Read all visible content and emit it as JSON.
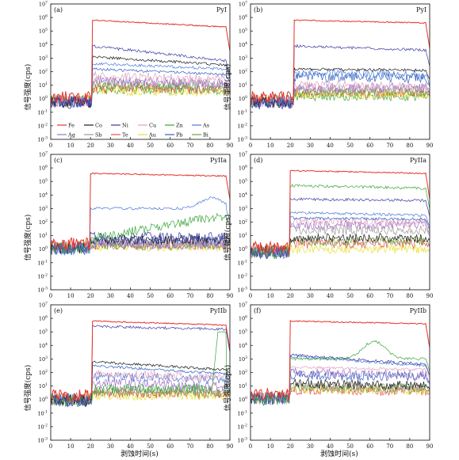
{
  "figure": {
    "y_axis_label": "信号强度(cps)",
    "x_axis_label": "剥蚀时间(s)",
    "x_ticks": [
      0,
      10,
      20,
      30,
      40,
      50,
      60,
      70,
      80,
      90
    ],
    "y_tick_exponents": [
      7,
      6,
      5,
      4,
      3,
      2,
      1,
      0,
      -1,
      -2,
      -3
    ],
    "y_tick_base": "10"
  },
  "legend": [
    {
      "label": "Fe",
      "color": "#e8322b"
    },
    {
      "label": "Co",
      "color": "#1a1a1a"
    },
    {
      "label": "Ni",
      "color": "#3a3aa6"
    },
    {
      "label": "Cu",
      "color": "#e0a0c0"
    },
    {
      "label": "Zn",
      "color": "#3aa63a"
    },
    {
      "label": "As",
      "color": "#4a7ad8"
    },
    {
      "label": "Ag",
      "color": "#a070c8"
    },
    {
      "label": "Sb",
      "color": "#9a9a9a"
    },
    {
      "label": "Te",
      "color": "#e85050"
    },
    {
      "label": "Au",
      "color": "#e8e030"
    },
    {
      "label": "Pb",
      "color": "#3060c0"
    },
    {
      "label": "Bi",
      "color": "#70a040"
    }
  ],
  "chart_data": [
    {
      "type": "line",
      "panel": "(a)",
      "mineral": "PyI",
      "xlim": [
        0,
        90
      ],
      "ylim_log10": [
        -3,
        7
      ],
      "ablation_window_s": [
        21,
        88
      ],
      "background_log10": 0,
      "series": [
        {
          "name": "Fe",
          "signal_log10": 5.8,
          "end_log10": 5.3
        },
        {
          "name": "Ni",
          "signal_log10": 3.9,
          "end_log10": 2.8
        },
        {
          "name": "Co",
          "signal_log10": 3.1,
          "end_log10": 2.5
        },
        {
          "name": "As",
          "signal_log10": 2.6,
          "end_log10": 2.2
        },
        {
          "name": "Pb",
          "signal_log10": 2.2,
          "end_log10": 1.8
        },
        {
          "name": "Cu",
          "signal_log10": 1.7,
          "end_log10": 1.4
        },
        {
          "name": "Ag",
          "signal_log10": 1.4,
          "end_log10": 1.1
        },
        {
          "name": "Sb",
          "signal_log10": 1.2,
          "end_log10": 1.0
        },
        {
          "name": "Bi",
          "signal_log10": 1.0,
          "end_log10": 0.8
        },
        {
          "name": "Te",
          "signal_log10": 0.8,
          "end_log10": 0.7
        },
        {
          "name": "Au",
          "signal_log10": 0.6,
          "end_log10": 0.5
        },
        {
          "name": "Zn",
          "signal_log10": 0.7,
          "end_log10": 0.6
        }
      ]
    },
    {
      "type": "line",
      "panel": "(b)",
      "mineral": "PyI",
      "xlim": [
        0,
        90
      ],
      "ylim_log10": [
        -3,
        7
      ],
      "ablation_window_s": [
        22,
        88
      ],
      "background_log10": 0,
      "series": [
        {
          "name": "Fe",
          "signal_log10": 5.8,
          "end_log10": 5.6
        },
        {
          "name": "Ni",
          "signal_log10": 3.9,
          "end_log10": 3.6
        },
        {
          "name": "Co",
          "signal_log10": 2.2,
          "end_log10": 2.1
        },
        {
          "name": "As",
          "signal_log10": 1.9,
          "end_log10": 1.8
        },
        {
          "name": "Pb",
          "signal_log10": 1.6,
          "end_log10": 1.5
        },
        {
          "name": "Cu",
          "signal_log10": 1.0,
          "end_log10": 0.9
        },
        {
          "name": "Ag",
          "signal_log10": 0.8,
          "end_log10": 0.8
        },
        {
          "name": "Sb",
          "signal_log10": 0.7,
          "end_log10": 0.7
        },
        {
          "name": "Bi",
          "signal_log10": 0.5,
          "end_log10": 0.5
        },
        {
          "name": "Au",
          "signal_log10": 0.3,
          "end_log10": 0.3
        },
        {
          "name": "Te",
          "signal_log10": 0.4,
          "end_log10": 0.4
        },
        {
          "name": "Zn",
          "signal_log10": 0.2,
          "end_log10": 0.2
        }
      ]
    },
    {
      "type": "line",
      "panel": "(c)",
      "mineral": "PyIIa",
      "xlim": [
        0,
        90
      ],
      "ylim_log10": [
        -3,
        7
      ],
      "ablation_window_s": [
        20,
        88
      ],
      "background_log10": 0.3,
      "series": [
        {
          "name": "Fe",
          "signal_log10": 5.6,
          "end_log10": 5.4
        },
        {
          "name": "As",
          "signal_log10": 3.0,
          "end_log10": 3.0,
          "bump_at": 81,
          "bump_log10": 3.8
        },
        {
          "name": "Zn",
          "signal_log10": 0.8,
          "end_log10": 2.5
        },
        {
          "name": "Ni",
          "signal_log10": 0.9,
          "end_log10": 0.9
        },
        {
          "name": "Co",
          "signal_log10": 0.7,
          "end_log10": 0.7
        },
        {
          "name": "Pb",
          "signal_log10": 0.6,
          "end_log10": 0.6
        },
        {
          "name": "Cu",
          "signal_log10": 0.5,
          "end_log10": 0.5
        },
        {
          "name": "Ag",
          "signal_log10": 0.4,
          "end_log10": 0.4
        },
        {
          "name": "Sb",
          "signal_log10": 0.3,
          "end_log10": 0.3
        },
        {
          "name": "Bi",
          "signal_log10": 0.3,
          "end_log10": 0.3
        },
        {
          "name": "Au",
          "signal_log10": 0.2,
          "end_log10": 0.2
        },
        {
          "name": "Te",
          "signal_log10": 0.3,
          "end_log10": 0.3
        }
      ]
    },
    {
      "type": "line",
      "panel": "(d)",
      "mineral": "PyIIa",
      "xlim": [
        0,
        90
      ],
      "ylim_log10": [
        -3,
        7
      ],
      "ablation_window_s": [
        20,
        88
      ],
      "background_log10": 0,
      "series": [
        {
          "name": "Fe",
          "signal_log10": 5.8,
          "end_log10": 5.6
        },
        {
          "name": "Zn",
          "signal_log10": 4.7,
          "end_log10": 4.5
        },
        {
          "name": "Ni",
          "signal_log10": 3.7,
          "end_log10": 3.6
        },
        {
          "name": "As",
          "signal_log10": 2.7,
          "end_log10": 2.5
        },
        {
          "name": "Pb",
          "signal_log10": 2.3,
          "end_log10": 2.2
        },
        {
          "name": "Cu",
          "signal_log10": 2.0,
          "end_log10": 2.0
        },
        {
          "name": "Ag",
          "signal_log10": 1.8,
          "end_log10": 1.8
        },
        {
          "name": "Sb",
          "signal_log10": 1.4,
          "end_log10": 1.4
        },
        {
          "name": "Co",
          "signal_log10": 0.8,
          "end_log10": 0.8
        },
        {
          "name": "Bi",
          "signal_log10": 0.6,
          "end_log10": 0.6
        },
        {
          "name": "Te",
          "signal_log10": 0.4,
          "end_log10": 0.4
        },
        {
          "name": "Au",
          "signal_log10": 0.0,
          "end_log10": 0.0
        }
      ]
    },
    {
      "type": "line",
      "panel": "(e)",
      "mineral": "PyIIb",
      "xlim": [
        0,
        90
      ],
      "ylim_log10": [
        -3,
        7
      ],
      "ablation_window_s": [
        21,
        88
      ],
      "background_log10": 0.2,
      "series": [
        {
          "name": "Fe",
          "signal_log10": 5.8,
          "end_log10": 5.5
        },
        {
          "name": "Ni",
          "signal_log10": 5.4,
          "end_log10": 5.2
        },
        {
          "name": "Zn",
          "signal_log10": 0.8,
          "end_log10": 0.8,
          "jump_at": 81,
          "jump_log10": 5.0
        },
        {
          "name": "Co",
          "signal_log10": 2.8,
          "end_log10": 2.2
        },
        {
          "name": "Pb",
          "signal_log10": 2.5,
          "end_log10": 1.9
        },
        {
          "name": "Cu",
          "signal_log10": 1.9,
          "end_log10": 1.6
        },
        {
          "name": "As",
          "signal_log10": 1.7,
          "end_log10": 1.5
        },
        {
          "name": "Ag",
          "signal_log10": 1.2,
          "end_log10": 1.0
        },
        {
          "name": "Sb",
          "signal_log10": 0.8,
          "end_log10": 0.7
        },
        {
          "name": "Bi",
          "signal_log10": 0.6,
          "end_log10": 0.5
        },
        {
          "name": "Te",
          "signal_log10": 0.5,
          "end_log10": 0.4
        },
        {
          "name": "Au",
          "signal_log10": 0.3,
          "end_log10": 0.3
        }
      ]
    },
    {
      "type": "line",
      "panel": "(f)",
      "mineral": "PyIIb",
      "xlim": [
        0,
        90
      ],
      "ylim_log10": [
        -3,
        7
      ],
      "ablation_window_s": [
        20,
        88
      ],
      "background_log10": 0.3,
      "series": [
        {
          "name": "Fe",
          "signal_log10": 5.8,
          "end_log10": 5.6
        },
        {
          "name": "Zn",
          "signal_log10": 3.0,
          "end_log10": 3.0,
          "bump_at": 62,
          "bump_log10": 4.3
        },
        {
          "name": "Ni",
          "signal_log10": 3.3,
          "end_log10": 2.6
        },
        {
          "name": "As",
          "signal_log10": 3.2,
          "end_log10": 2.5
        },
        {
          "name": "Cu",
          "signal_log10": 2.4,
          "end_log10": 2.2
        },
        {
          "name": "Ag",
          "signal_log10": 2.0,
          "end_log10": 1.8
        },
        {
          "name": "Pb",
          "signal_log10": 1.8,
          "end_log10": 1.7
        },
        {
          "name": "Co",
          "signal_log10": 1.2,
          "end_log10": 1.0
        },
        {
          "name": "Sb",
          "signal_log10": 1.0,
          "end_log10": 0.9
        },
        {
          "name": "Bi",
          "signal_log10": 0.9,
          "end_log10": 0.8
        },
        {
          "name": "Au",
          "signal_log10": 0.8,
          "end_log10": 0.7
        },
        {
          "name": "Te",
          "signal_log10": 0.7,
          "end_log10": 0.6
        }
      ]
    }
  ]
}
